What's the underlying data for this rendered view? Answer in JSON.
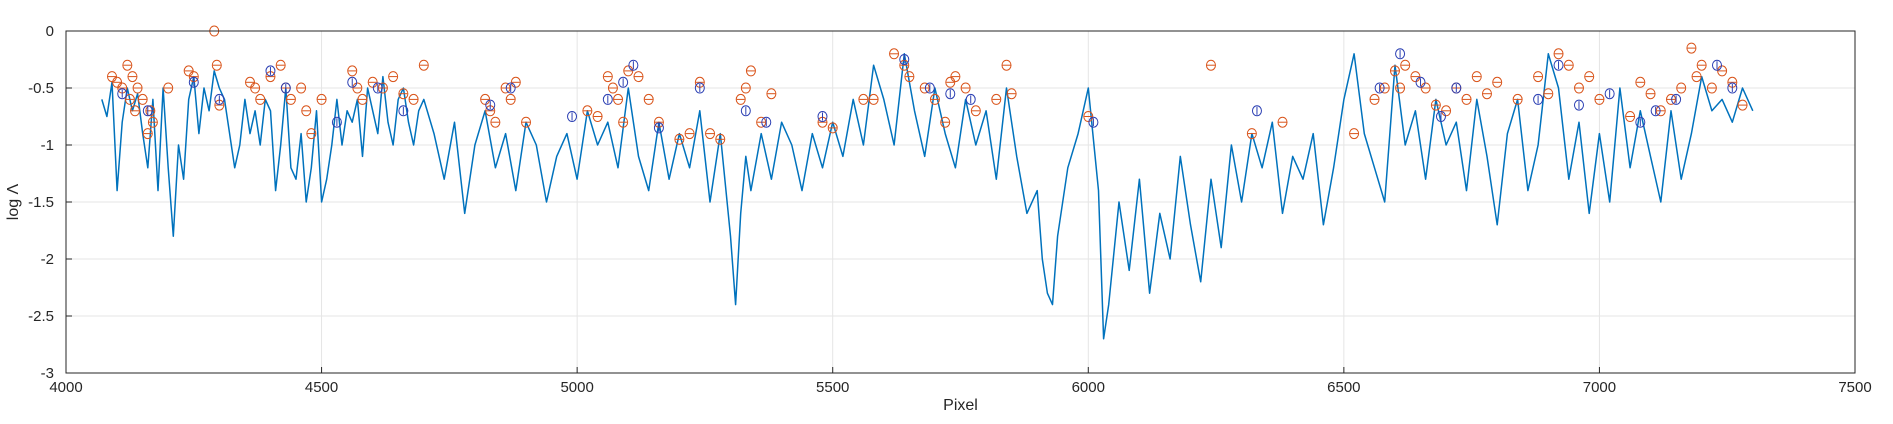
{
  "chart_data": {
    "type": "line",
    "title": "",
    "xlabel": "Pixel",
    "ylabel": "log Λ",
    "xlim": [
      4000,
      7500
    ],
    "ylim": [
      -3,
      0
    ],
    "xticks": [
      4000,
      4500,
      5000,
      5500,
      6000,
      6500,
      7000,
      7500
    ],
    "xtick_labels": [
      "4000",
      "4500",
      "5000",
      "5500",
      "6000",
      "6500",
      "7000",
      "7500"
    ],
    "yticks": [
      0,
      -0.5,
      -1,
      -1.5,
      -2,
      -2.5,
      -3
    ],
    "ytick_labels": [
      "0",
      "-0.5",
      "-1",
      "-1.5",
      "-2",
      "-2.5",
      "-3"
    ],
    "grid": true,
    "colors": {
      "line": "#0072BD",
      "circle_red": "#D95319",
      "circle_blue": "#2B3FB3",
      "axes": "#262626",
      "grid": "#E5E5E5"
    },
    "series": [
      {
        "style": "line",
        "x": [
          4070,
          4080,
          4090,
          4100,
          4110,
          4120,
          4130,
          4140,
          4150,
          4160,
          4170,
          4180,
          4190,
          4200,
          4210,
          4220,
          4230,
          4240,
          4250,
          4260,
          4270,
          4280,
          4290,
          4300,
          4310,
          4320,
          4330,
          4340,
          4350,
          4360,
          4370,
          4380,
          4390,
          4400,
          4410,
          4420,
          4430,
          4440,
          4450,
          4460,
          4470,
          4480,
          4490,
          4500,
          4510,
          4520,
          4530,
          4540,
          4550,
          4560,
          4570,
          4580,
          4590,
          4600,
          4610,
          4620,
          4630,
          4640,
          4650,
          4660,
          4670,
          4680,
          4690,
          4700,
          4720,
          4740,
          4760,
          4780,
          4800,
          4820,
          4840,
          4860,
          4880,
          4900,
          4920,
          4940,
          4960,
          4980,
          5000,
          5020,
          5040,
          5060,
          5080,
          5100,
          5120,
          5140,
          5160,
          5180,
          5200,
          5220,
          5240,
          5260,
          5280,
          5300,
          5310,
          5320,
          5330,
          5340,
          5360,
          5380,
          5400,
          5420,
          5440,
          5460,
          5480,
          5500,
          5520,
          5540,
          5560,
          5580,
          5600,
          5620,
          5640,
          5660,
          5680,
          5700,
          5720,
          5740,
          5760,
          5780,
          5800,
          5820,
          5840,
          5860,
          5880,
          5900,
          5910,
          5920,
          5930,
          5940,
          5960,
          5980,
          6000,
          6020,
          6030,
          6040,
          6060,
          6080,
          6100,
          6120,
          6140,
          6160,
          6180,
          6200,
          6220,
          6240,
          6260,
          6280,
          6300,
          6320,
          6340,
          6360,
          6380,
          6400,
          6420,
          6440,
          6460,
          6480,
          6500,
          6520,
          6540,
          6560,
          6580,
          6600,
          6620,
          6640,
          6660,
          6680,
          6700,
          6720,
          6740,
          6760,
          6780,
          6800,
          6820,
          6840,
          6860,
          6880,
          6900,
          6920,
          6940,
          6960,
          6980,
          7000,
          7020,
          7040,
          7060,
          7080,
          7100,
          7120,
          7140,
          7160,
          7180,
          7200,
          7220,
          7240,
          7260,
          7280,
          7300
        ],
        "y": [
          -0.6,
          -0.75,
          -0.45,
          -1.4,
          -0.8,
          -0.5,
          -0.7,
          -0.55,
          -0.9,
          -1.2,
          -0.6,
          -1.4,
          -0.5,
          -1.2,
          -1.8,
          -1.0,
          -1.3,
          -0.6,
          -0.4,
          -0.9,
          -0.5,
          -0.7,
          -0.35,
          -0.5,
          -0.6,
          -0.9,
          -1.2,
          -1.0,
          -0.6,
          -0.9,
          -0.7,
          -1.0,
          -0.6,
          -0.7,
          -1.4,
          -1.0,
          -0.5,
          -1.2,
          -1.3,
          -0.9,
          -1.5,
          -1.2,
          -0.7,
          -1.5,
          -1.3,
          -1.0,
          -0.6,
          -1.0,
          -0.7,
          -0.8,
          -0.6,
          -1.1,
          -0.5,
          -0.7,
          -0.9,
          -0.4,
          -0.8,
          -1.0,
          -0.6,
          -0.5,
          -0.8,
          -1.0,
          -0.7,
          -0.6,
          -0.9,
          -1.3,
          -0.8,
          -1.6,
          -1.0,
          -0.7,
          -1.2,
          -0.9,
          -1.4,
          -0.8,
          -1.0,
          -1.5,
          -1.1,
          -0.9,
          -1.3,
          -0.7,
          -1.0,
          -0.8,
          -1.2,
          -0.5,
          -1.1,
          -1.4,
          -0.8,
          -1.3,
          -0.9,
          -1.2,
          -0.7,
          -1.5,
          -0.9,
          -1.8,
          -2.4,
          -1.6,
          -1.1,
          -1.4,
          -0.9,
          -1.3,
          -0.8,
          -1.0,
          -1.4,
          -0.9,
          -1.2,
          -0.8,
          -1.1,
          -0.6,
          -1.0,
          -0.3,
          -0.6,
          -1.0,
          -0.2,
          -0.7,
          -1.1,
          -0.5,
          -0.9,
          -1.2,
          -0.6,
          -1.0,
          -0.7,
          -1.3,
          -0.5,
          -1.1,
          -1.6,
          -1.4,
          -2.0,
          -2.3,
          -2.4,
          -1.8,
          -1.2,
          -0.9,
          -0.5,
          -1.4,
          -2.7,
          -2.4,
          -1.5,
          -2.1,
          -1.3,
          -2.3,
          -1.6,
          -2.0,
          -1.1,
          -1.7,
          -2.2,
          -1.3,
          -1.9,
          -1.0,
          -1.5,
          -0.9,
          -1.2,
          -0.8,
          -1.6,
          -1.1,
          -1.3,
          -0.9,
          -1.7,
          -1.2,
          -0.6,
          -0.2,
          -0.9,
          -1.2,
          -1.5,
          -0.3,
          -1.0,
          -0.7,
          -1.3,
          -0.6,
          -1.0,
          -0.8,
          -1.4,
          -0.6,
          -1.1,
          -1.7,
          -0.9,
          -0.6,
          -1.4,
          -1.0,
          -0.2,
          -0.5,
          -1.3,
          -0.8,
          -1.6,
          -0.9,
          -1.5,
          -0.5,
          -1.2,
          -0.7,
          -1.1,
          -1.5,
          -0.7,
          -1.3,
          -0.9,
          -0.4,
          -0.7,
          -0.6,
          -0.8,
          -0.5,
          -0.7
        ]
      },
      {
        "style": "red-circles",
        "x": [
          4090,
          4100,
          4110,
          4120,
          4125,
          4130,
          4135,
          4140,
          4150,
          4160,
          4165,
          4170,
          4200,
          4240,
          4250,
          4290,
          4295,
          4300,
          4360,
          4370,
          4380,
          4400,
          4420,
          4430,
          4440,
          4460,
          4470,
          4480,
          4500,
          4560,
          4570,
          4580,
          4600,
          4620,
          4640,
          4660,
          4680,
          4700,
          4820,
          4830,
          4840,
          4860,
          4870,
          4880,
          4900,
          5020,
          5040,
          5060,
          5070,
          5080,
          5090,
          5100,
          5120,
          5140,
          5160,
          5200,
          5220,
          5240,
          5260,
          5280,
          5320,
          5330,
          5340,
          5360,
          5380,
          5480,
          5500,
          5560,
          5580,
          5620,
          5640,
          5650,
          5680,
          5700,
          5720,
          5730,
          5740,
          5760,
          5780,
          5820,
          5840,
          5850,
          6000,
          6240,
          6320,
          6380,
          6520,
          6560,
          6580,
          6600,
          6610,
          6620,
          6640,
          6660,
          6680,
          6700,
          6720,
          6740,
          6760,
          6780,
          6800,
          6840,
          6880,
          6900,
          6920,
          6940,
          6960,
          6980,
          7000,
          7060,
          7080,
          7100,
          7120,
          7140,
          7160,
          7180,
          7190,
          7200,
          7220,
          7240,
          7260,
          7280
        ],
        "y": [
          -0.4,
          -0.45,
          -0.5,
          -0.3,
          -0.6,
          -0.4,
          -0.7,
          -0.5,
          -0.6,
          -0.9,
          -0.7,
          -0.8,
          -0.5,
          -0.35,
          -0.4,
          0,
          -0.3,
          -0.65,
          -0.45,
          -0.5,
          -0.6,
          -0.4,
          -0.3,
          -0.5,
          -0.6,
          -0.5,
          -0.7,
          -0.9,
          -0.6,
          -0.35,
          -0.5,
          -0.6,
          -0.45,
          -0.5,
          -0.4,
          -0.55,
          -0.6,
          -0.3,
          -0.6,
          -0.7,
          -0.8,
          -0.5,
          -0.6,
          -0.45,
          -0.8,
          -0.7,
          -0.75,
          -0.4,
          -0.5,
          -0.6,
          -0.8,
          -0.35,
          -0.4,
          -0.6,
          -0.8,
          -0.95,
          -0.9,
          -0.45,
          -0.9,
          -0.95,
          -0.6,
          -0.5,
          -0.35,
          -0.8,
          -0.55,
          -0.8,
          -0.85,
          -0.6,
          -0.6,
          -0.2,
          -0.3,
          -0.4,
          -0.5,
          -0.6,
          -0.8,
          -0.45,
          -0.4,
          -0.5,
          -0.7,
          -0.6,
          -0.3,
          -0.55,
          -0.75,
          -0.3,
          -0.9,
          -0.8,
          -0.9,
          -0.6,
          -0.5,
          -0.35,
          -0.5,
          -0.3,
          -0.4,
          -0.5,
          -0.65,
          -0.7,
          -0.5,
          -0.6,
          -0.4,
          -0.55,
          -0.45,
          -0.6,
          -0.4,
          -0.55,
          -0.2,
          -0.3,
          -0.5,
          -0.4,
          -0.6,
          -0.75,
          -0.45,
          -0.55,
          -0.7,
          -0.6,
          -0.5,
          -0.15,
          -0.4,
          -0.3,
          -0.5,
          -0.35,
          -0.45,
          -0.65
        ]
      },
      {
        "style": "blue-circles",
        "x": [
          4110,
          4160,
          4250,
          4300,
          4400,
          4430,
          4530,
          4560,
          4610,
          4660,
          4830,
          4870,
          4990,
          5060,
          5090,
          5110,
          5160,
          5240,
          5330,
          5370,
          5480,
          5640,
          5690,
          5730,
          5770,
          6010,
          6330,
          6570,
          6610,
          6650,
          6690,
          6720,
          6880,
          6920,
          6960,
          7020,
          7080,
          7110,
          7150,
          7230,
          7260
        ],
        "y": [
          -0.55,
          -0.7,
          -0.45,
          -0.6,
          -0.35,
          -0.5,
          -0.8,
          -0.45,
          -0.5,
          -0.7,
          -0.65,
          -0.5,
          -0.75,
          -0.6,
          -0.45,
          -0.3,
          -0.85,
          -0.5,
          -0.7,
          -0.8,
          -0.75,
          -0.25,
          -0.5,
          -0.55,
          -0.6,
          -0.8,
          -0.7,
          -0.5,
          -0.2,
          -0.45,
          -0.75,
          -0.5,
          -0.6,
          -0.3,
          -0.65,
          -0.55,
          -0.8,
          -0.7,
          -0.6,
          -0.3,
          -0.5
        ]
      }
    ]
  }
}
